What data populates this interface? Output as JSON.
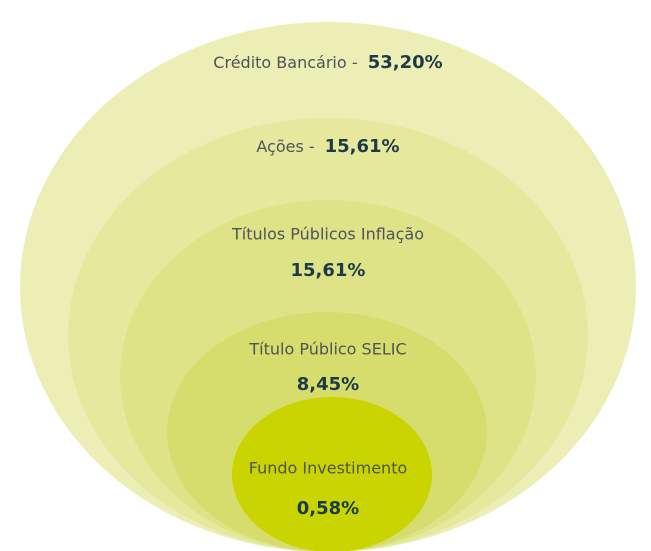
{
  "chart_data": {
    "type": "nested-ellipse",
    "categories": [
      "Crédito Bancário",
      "Ações",
      "Títulos Públicos Inflação",
      "Título Público SELIC",
      "Fundo Investimento"
    ],
    "values": [
      53.2,
      15.61,
      15.61,
      8.45,
      0.58
    ],
    "value_labels": [
      "53,20%",
      "15,61%",
      "15,61%",
      "8,45%",
      "0,58%"
    ],
    "separator": "-",
    "colors": [
      "#eceeb5",
      "#e5e89d",
      "#dee387",
      "#d6dd6c",
      "#c9d400"
    ]
  }
}
